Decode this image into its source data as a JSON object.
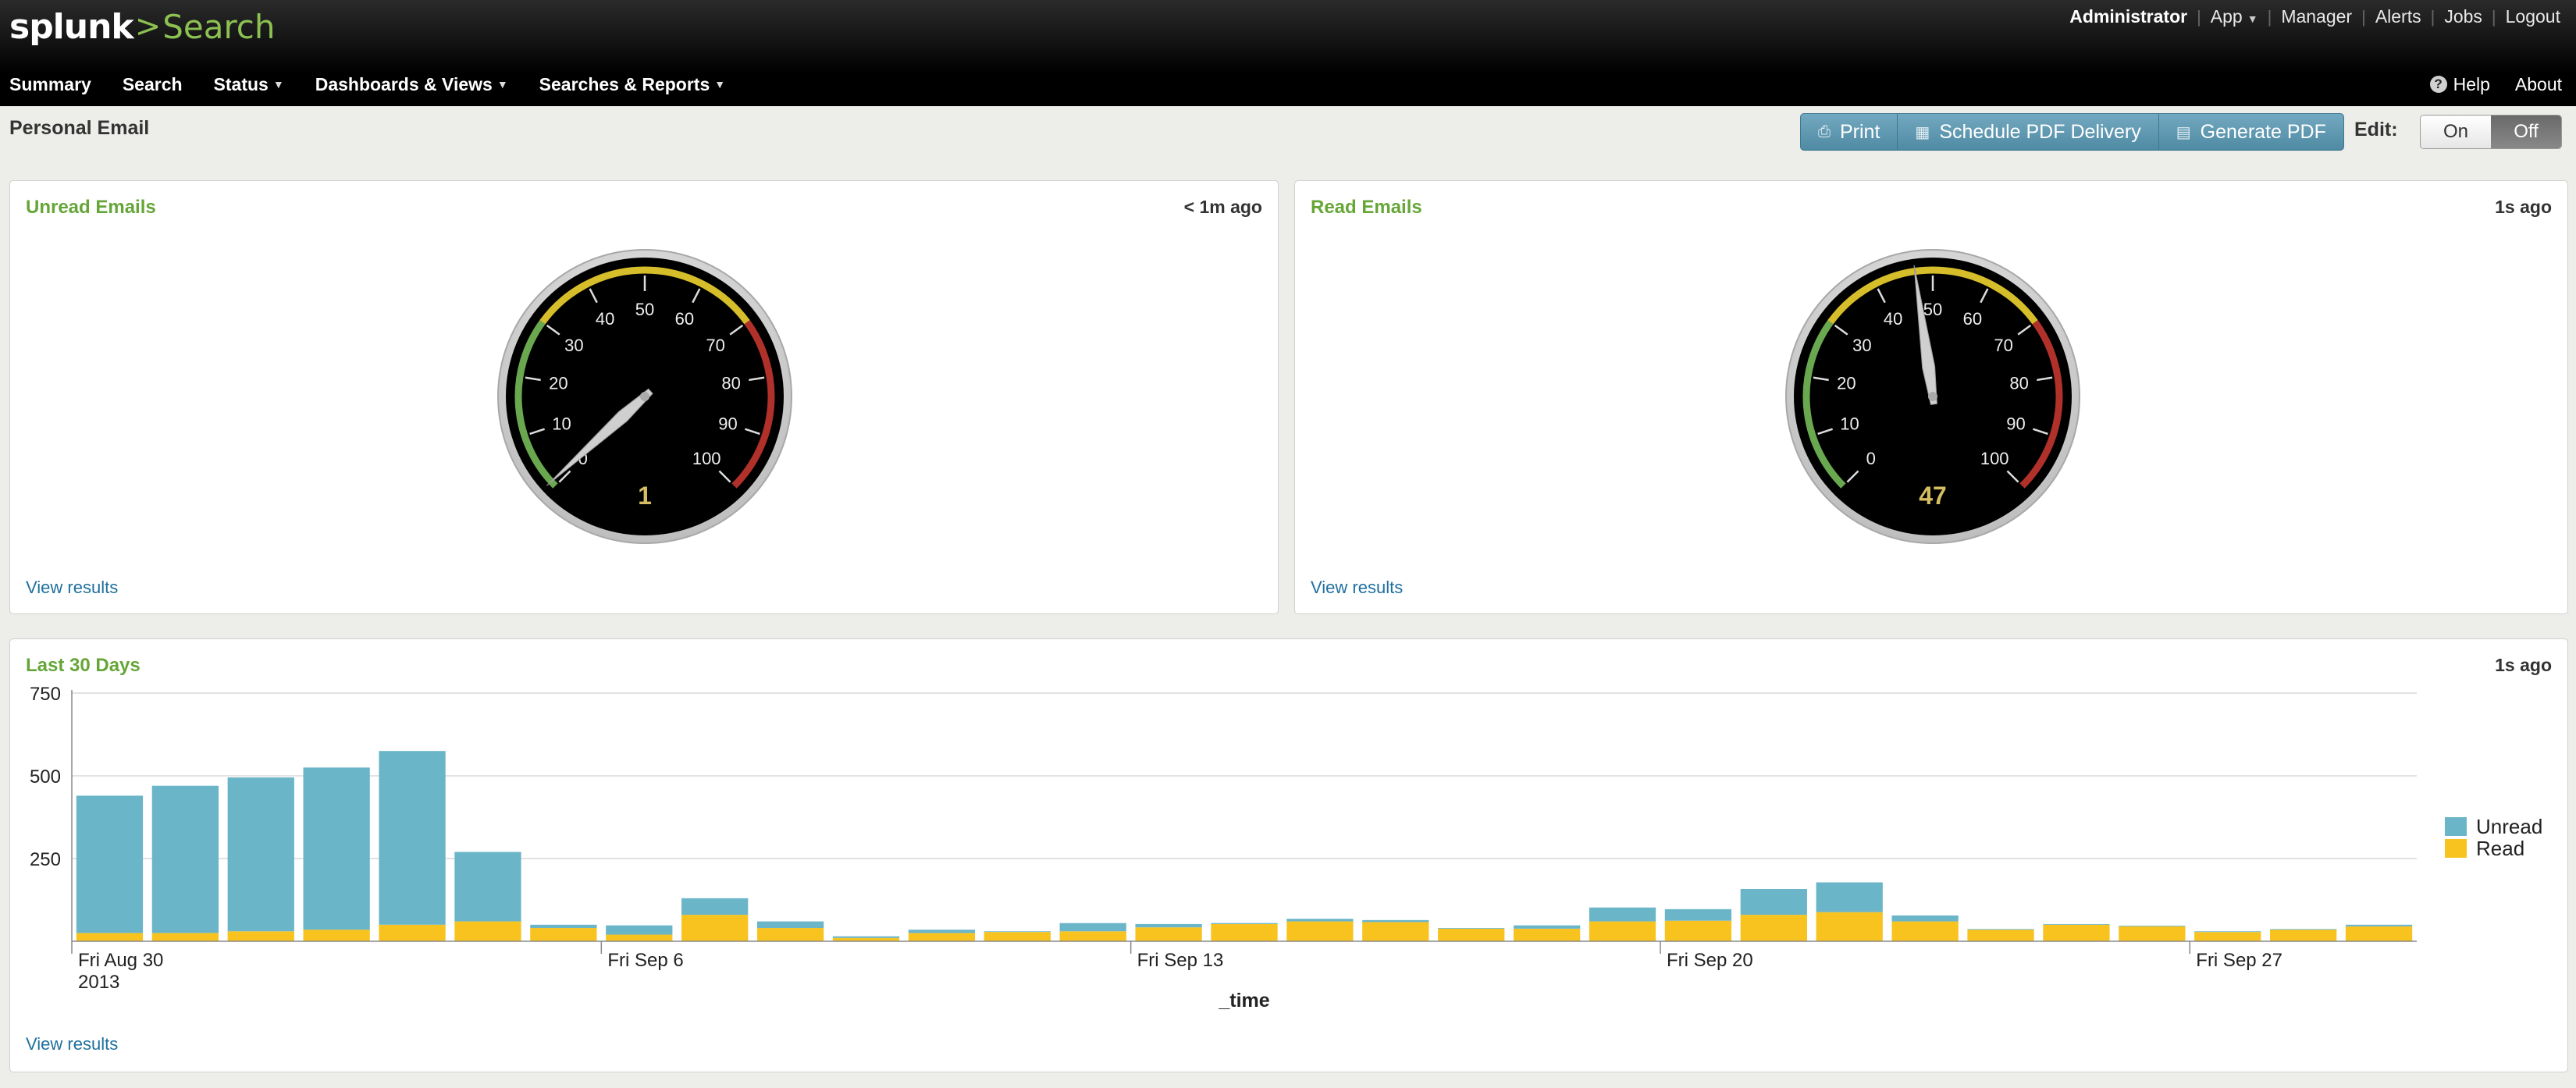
{
  "app": {
    "logo_text": "splunk",
    "logo_caret": ">",
    "app_name": "Search"
  },
  "account_nav": {
    "user": "Administrator",
    "app": "App",
    "manager": "Manager",
    "alerts": "Alerts",
    "jobs": "Jobs",
    "logout": "Logout"
  },
  "main_nav": [
    {
      "label": "Summary",
      "dropdown": false
    },
    {
      "label": "Search",
      "dropdown": false
    },
    {
      "label": "Status",
      "dropdown": true
    },
    {
      "label": "Dashboards & Views",
      "dropdown": true
    },
    {
      "label": "Searches & Reports",
      "dropdown": true
    }
  ],
  "right_nav": {
    "help": "Help",
    "about": "About"
  },
  "page": {
    "title": "Personal Email",
    "print": "Print",
    "schedule_pdf": "Schedule PDF Delivery",
    "generate_pdf": "Generate PDF",
    "edit_label": "Edit:",
    "edit_on": "On",
    "edit_off": "Off",
    "edit_state": "Off"
  },
  "panels": {
    "unread": {
      "title": "Unread Emails",
      "time": "< 1m ago",
      "value": 1,
      "value_label": "1",
      "view_results": "View results",
      "ticks": [
        "0",
        "10",
        "20",
        "30",
        "40",
        "50",
        "60",
        "70",
        "80",
        "90",
        "100"
      ],
      "min": 0,
      "max": 100
    },
    "read": {
      "title": "Read Emails",
      "time": "1s ago",
      "value": 47,
      "value_label": "47",
      "view_results": "View results",
      "ticks": [
        "0",
        "10",
        "20",
        "30",
        "40",
        "50",
        "60",
        "70",
        "80",
        "90",
        "100"
      ],
      "min": 0,
      "max": 100
    },
    "last30": {
      "title": "Last 30 Days",
      "time": "1s ago",
      "view_results": "View results"
    }
  },
  "colors": {
    "unread": "#6bb5c9",
    "read": "#f8c31e",
    "gauge_green": "#6aa84f",
    "gauge_yellow": "#d6bd2a",
    "gauge_red": "#b0302a",
    "title_green": "#65a637"
  },
  "chart_data": {
    "type": "bar",
    "stacked": true,
    "xlabel": "_time",
    "ylabel": "",
    "ylim": [
      0,
      750
    ],
    "y_ticks": [
      "250",
      "500",
      "750"
    ],
    "x_tick_labels": [
      {
        "index": 0,
        "label": "Fri Aug 30",
        "sub": "2013"
      },
      {
        "index": 7,
        "label": "Fri Sep 6",
        "sub": ""
      },
      {
        "index": 14,
        "label": "Fri Sep 13",
        "sub": ""
      },
      {
        "index": 21,
        "label": "Fri Sep 20",
        "sub": ""
      },
      {
        "index": 28,
        "label": "Fri Sep 27",
        "sub": ""
      }
    ],
    "legend": [
      "Unread",
      "Read"
    ],
    "legend_position": "right",
    "series": [
      {
        "name": "Read",
        "values": [
          25,
          25,
          30,
          35,
          50,
          60,
          40,
          20,
          80,
          40,
          10,
          25,
          28,
          30,
          42,
          52,
          60,
          58,
          38,
          38,
          60,
          62,
          80,
          88,
          60,
          35,
          50,
          45,
          28,
          35,
          45
        ]
      },
      {
        "name": "Unread",
        "values": [
          415,
          445,
          465,
          490,
          525,
          210,
          10,
          28,
          50,
          20,
          5,
          10,
          2,
          25,
          10,
          3,
          8,
          6,
          2,
          10,
          42,
          35,
          78,
          90,
          18,
          2,
          2,
          2,
          2,
          2,
          5
        ]
      }
    ]
  }
}
